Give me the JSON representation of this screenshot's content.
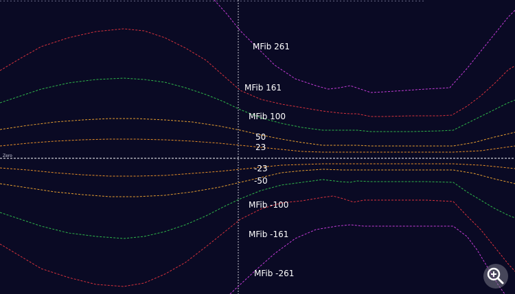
{
  "colors": {
    "background": "#0a0a24",
    "fib_261": "#c43cd8",
    "fib_161": "#d8323c",
    "fib_100": "#2fb84a",
    "fib_50": "#e8a030",
    "fib_23": "#e89028",
    "zero": "#ffffff",
    "cursor": "#c8c8d0"
  },
  "zero_line": {
    "label": "Zero"
  },
  "levels": [
    {
      "label": "MFib 261"
    },
    {
      "label": "MFib 161"
    },
    {
      "label": "MFib 100"
    },
    {
      "label": "50"
    },
    {
      "label": "23"
    },
    {
      "label": "-23"
    },
    {
      "label": "-50"
    },
    {
      "label": "MFib -100"
    },
    {
      "label": "MFib -161"
    },
    {
      "label": "MFib -261"
    }
  ],
  "zoom_button": {
    "icon": "zoom-in-icon"
  }
}
